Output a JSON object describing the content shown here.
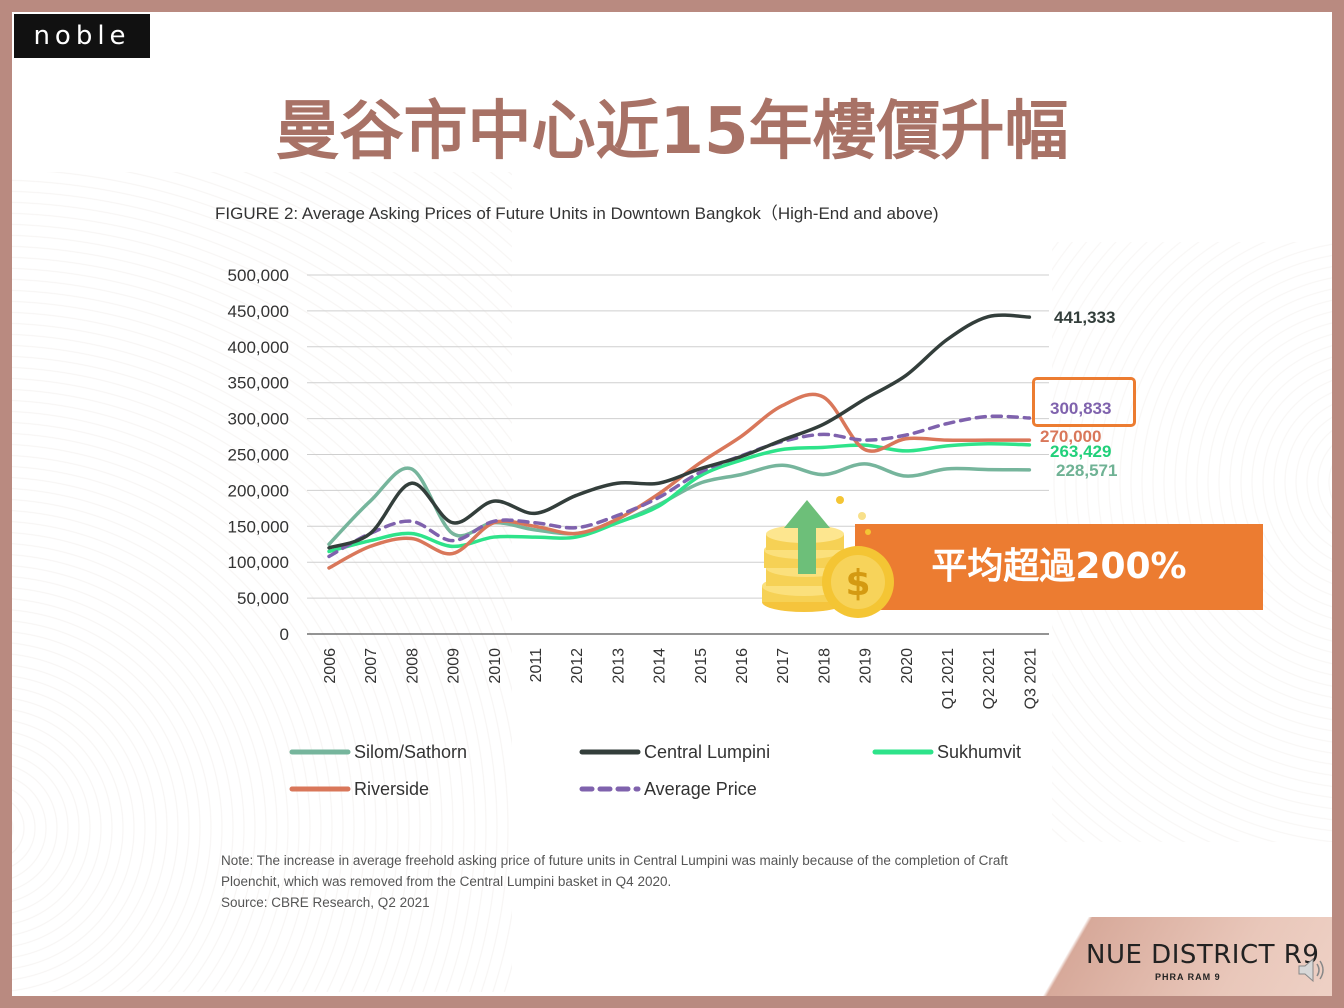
{
  "brand": "noble",
  "slide_title": "曼谷市中心近15年樓價升幅",
  "callout_text": "平均超過200%",
  "footer": {
    "logo": "NUE DISTRICT R9",
    "sub": "PHRA RAM 9"
  },
  "note_lines": [
    "Note: The increase in average freehold asking price of future units in Central Lumpini was mainly because of the completion of Craft",
    "Ploenchit, which was removed from the Central Lumpini basket in Q4 2020.",
    "Source: CBRE Research, Q2 2021"
  ],
  "chart_data": {
    "type": "line",
    "title": "FIGURE 2: Average Asking Prices of Future Units in Downtown Bangkok（High-End and above)",
    "categories": [
      "2006",
      "2007",
      "2008",
      "2009",
      "2010",
      "2011",
      "2012",
      "2013",
      "2014",
      "2015",
      "2016",
      "2017",
      "2018",
      "2019",
      "2020",
      "Q1 2021",
      "Q2 2021",
      "Q3 2021"
    ],
    "ylim": [
      0,
      500000
    ],
    "yticks": [
      0,
      50000,
      100000,
      150000,
      200000,
      250000,
      300000,
      350000,
      400000,
      450000,
      500000
    ],
    "ytick_labels": [
      "0",
      "50,000",
      "100,000",
      "150,000",
      "200,000",
      "250,000",
      "300,000",
      "350,000",
      "400,000",
      "450,000",
      "500,000"
    ],
    "grid": true,
    "legend_position": "bottom",
    "series": [
      {
        "name": "Silom/Sathorn",
        "color": "#76b59c",
        "dash": false,
        "values": [
          125000,
          185000,
          230000,
          140000,
          155000,
          145000,
          140000,
          155000,
          180000,
          210000,
          222000,
          235000,
          222000,
          237000,
          220000,
          230000,
          229000,
          228571
        ],
        "end_label": "228,571"
      },
      {
        "name": "Central Lumpini",
        "color": "#333e3b",
        "dash": false,
        "values": [
          120000,
          140000,
          210000,
          155000,
          185000,
          168000,
          193000,
          210000,
          210000,
          230000,
          247000,
          270000,
          292000,
          327000,
          360000,
          410000,
          442000,
          441333
        ],
        "end_label": "441,333"
      },
      {
        "name": "Sukhumvit",
        "color": "#2ee38a",
        "dash": false,
        "values": [
          115000,
          130000,
          140000,
          122000,
          135000,
          135000,
          135000,
          155000,
          178000,
          220000,
          242000,
          257000,
          260000,
          263000,
          255000,
          262000,
          265000,
          263429
        ],
        "end_label": "263,429"
      },
      {
        "name": "Riverside",
        "color": "#d9775a",
        "dash": false,
        "values": [
          92000,
          122000,
          133000,
          112000,
          155000,
          150000,
          140000,
          160000,
          195000,
          238000,
          275000,
          318000,
          330000,
          257000,
          272000,
          270000,
          270000,
          270000
        ],
        "end_label": "270,000"
      },
      {
        "name": "Average Price",
        "color": "#7f62ad",
        "dash": true,
        "values": [
          108000,
          140000,
          157000,
          130000,
          157000,
          155000,
          148000,
          165000,
          190000,
          225000,
          248000,
          268000,
          278000,
          270000,
          277000,
          293000,
          303000,
          300833
        ],
        "end_label": "300,833"
      }
    ]
  }
}
